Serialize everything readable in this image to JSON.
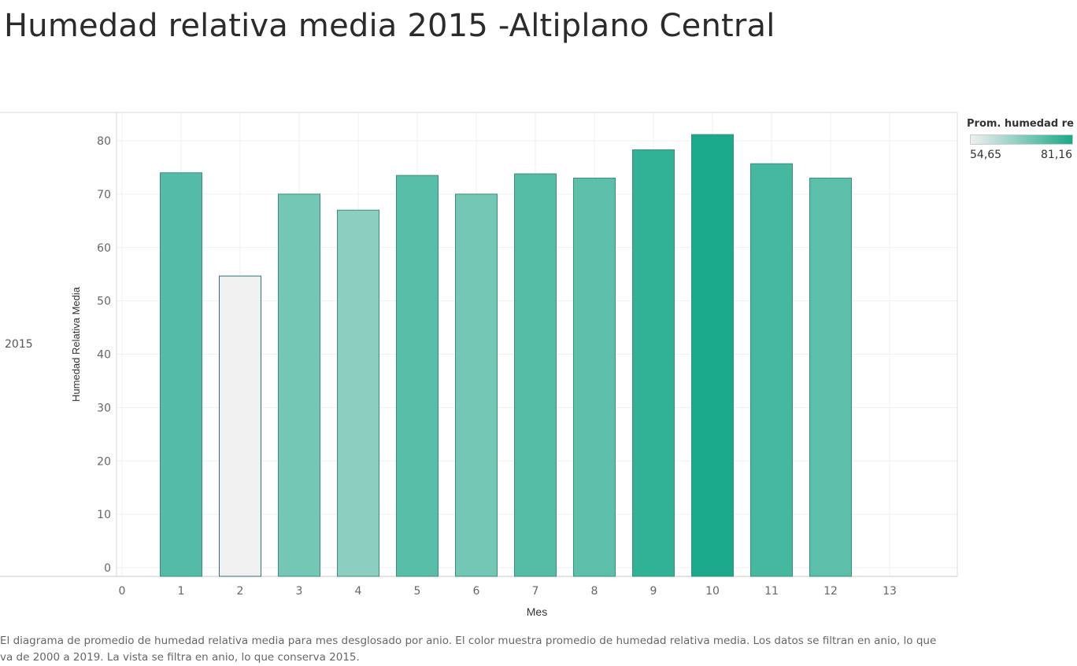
{
  "title": "Humedad relativa media 2015 -Altiplano Central",
  "row_header": "2015",
  "legend": {
    "title": "Prom. humedad re..",
    "min_label": "54,65",
    "max_label": "81,16",
    "min_color": "#f0f0f0",
    "max_color": "#1aa98a"
  },
  "caption": "El diagrama de promedio de humedad relativa media para mes desglosado por anio.  El color muestra promedio de humedad relativa media. Los datos se filtran en anio, lo que va de 2000 a 2019. La vista se filtra en anio, lo que conserva 2015.",
  "chart_data": {
    "type": "bar",
    "x": [
      1,
      2,
      3,
      4,
      5,
      6,
      7,
      8,
      9,
      10,
      11,
      12
    ],
    "values": [
      74.0,
      54.65,
      70.0,
      67.0,
      73.5,
      70.0,
      73.8,
      73.0,
      78.3,
      81.16,
      75.7,
      73.0
    ],
    "xlabel": "Mes",
    "ylabel": "Humedad Relativa Media",
    "xlim": [
      0,
      13
    ],
    "ylim": [
      0,
      85
    ],
    "xticks": [
      "0",
      "1",
      "2",
      "3",
      "4",
      "5",
      "6",
      "7",
      "8",
      "9",
      "10",
      "11",
      "12",
      "13"
    ],
    "yticks": [
      "0",
      "10",
      "20",
      "30",
      "40",
      "50",
      "60",
      "70",
      "80"
    ],
    "grid": true,
    "color_min": 54.65,
    "color_max": 81.16
  }
}
